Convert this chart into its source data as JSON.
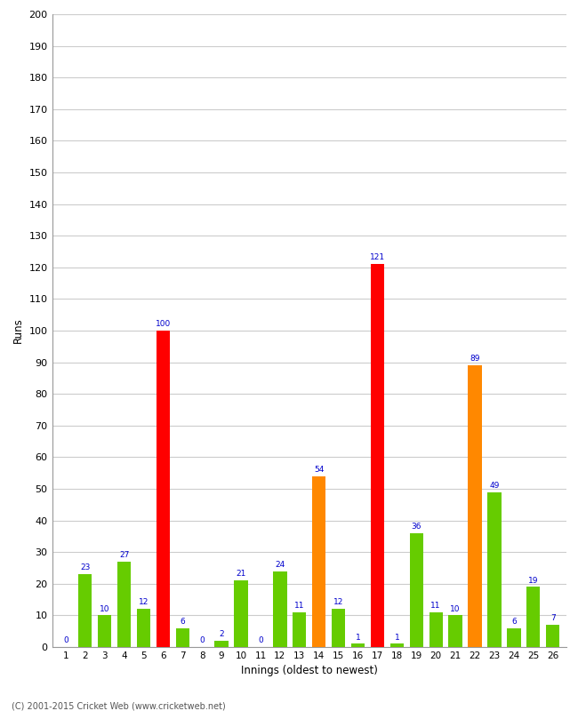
{
  "xlabel": "Innings (oldest to newest)",
  "ylabel": "Runs",
  "categories": [
    "1",
    "2",
    "3",
    "4",
    "5",
    "6",
    "7",
    "8",
    "9",
    "10",
    "11",
    "12",
    "13",
    "14",
    "15",
    "16",
    "17",
    "18",
    "19",
    "20",
    "21",
    "22",
    "23",
    "24",
    "25",
    "26"
  ],
  "values": [
    0,
    23,
    10,
    27,
    12,
    100,
    6,
    0,
    2,
    21,
    0,
    24,
    11,
    54,
    12,
    1,
    121,
    1,
    36,
    11,
    10,
    89,
    49,
    6,
    19,
    7
  ],
  "colors": [
    "#66cc00",
    "#66cc00",
    "#66cc00",
    "#66cc00",
    "#66cc00",
    "#ff0000",
    "#66cc00",
    "#66cc00",
    "#66cc00",
    "#66cc00",
    "#66cc00",
    "#66cc00",
    "#66cc00",
    "#ff8800",
    "#66cc00",
    "#66cc00",
    "#ff0000",
    "#66cc00",
    "#66cc00",
    "#66cc00",
    "#66cc00",
    "#ff8800",
    "#66cc00",
    "#66cc00",
    "#66cc00",
    "#66cc00"
  ],
  "ylim": [
    0,
    200
  ],
  "yticks": [
    0,
    10,
    20,
    30,
    40,
    50,
    60,
    70,
    80,
    90,
    100,
    110,
    120,
    130,
    140,
    150,
    160,
    170,
    180,
    190,
    200
  ],
  "label_color": "#0000cc",
  "background_color": "#ffffff",
  "grid_color": "#cccccc",
  "footer": "(C) 2001-2015 Cricket Web (www.cricketweb.net)",
  "bar_width": 0.7
}
